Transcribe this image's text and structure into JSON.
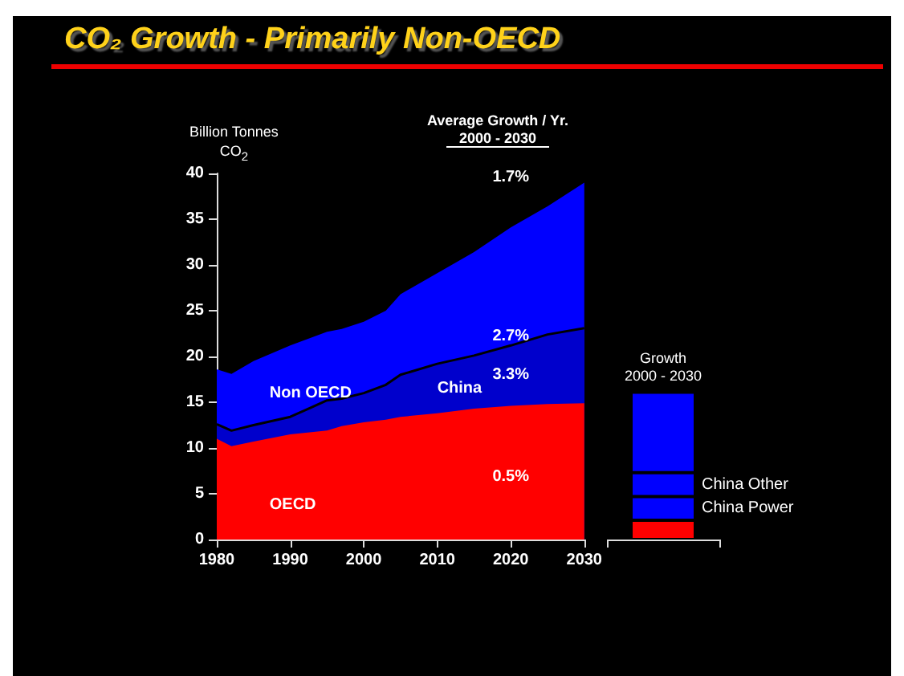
{
  "chart_data": [
    {
      "type": "area",
      "title": "CO₂ Growth - Primarily Non-OECD",
      "ylabel": "Billion Tonnes\nCO$_{2}$",
      "x": [
        1980,
        1982,
        1985,
        1990,
        1995,
        1997,
        2000,
        2003,
        2005,
        2010,
        2015,
        2020,
        2025,
        2030
      ],
      "series": [
        {
          "name": "OECD",
          "color": "#ff0000",
          "values": [
            11.0,
            10.2,
            10.7,
            11.5,
            11.9,
            12.4,
            12.8,
            13.1,
            13.4,
            13.8,
            14.3,
            14.6,
            14.8,
            14.9
          ]
        },
        {
          "name": "China",
          "color": "#0000cc",
          "values": [
            1.6,
            1.7,
            1.8,
            1.9,
            3.3,
            3.0,
            3.2,
            3.8,
            4.6,
            5.4,
            5.8,
            6.6,
            7.6,
            8.2
          ]
        },
        {
          "name": "Non OECD",
          "color": "#0000ff",
          "values": [
            6.0,
            6.2,
            7.0,
            7.8,
            7.5,
            7.6,
            7.8,
            8.1,
            8.8,
            9.9,
            11.3,
            12.9,
            14.0,
            15.9
          ]
        }
      ],
      "stacked": true,
      "xlim": [
        1980,
        2030
      ],
      "xticks": [
        1980,
        1990,
        2000,
        2010,
        2020,
        2030
      ],
      "ylim": [
        0,
        40
      ],
      "yticks": [
        0,
        5,
        10,
        15,
        20,
        25,
        30,
        35,
        40
      ],
      "grid": false,
      "legend": false,
      "annotations": [
        "Average Growth / Yr.\n2000 - 2030",
        "1.7%",
        "2.7%",
        "3.3%",
        "0.5%"
      ]
    },
    {
      "type": "bar",
      "title": "Growth\n2000 - 2030",
      "categories": [
        null
      ],
      "stacked": true,
      "series": [
        {
          "color": "#ff0000",
          "values": [
            2.1
          ]
        },
        {
          "name": "China Power",
          "color": "#0000ff",
          "values": [
            2.6
          ]
        },
        {
          "name": "China Other",
          "color": "#0000ff",
          "values": [
            2.6
          ]
        },
        {
          "color": "#0000ff",
          "values": [
            8.8
          ]
        }
      ],
      "ylim": [
        0,
        40
      ],
      "yticks": [
        0,
        5,
        10,
        15,
        20,
        25,
        30,
        35,
        40
      ],
      "tick_labels": false,
      "legend": false
    }
  ]
}
